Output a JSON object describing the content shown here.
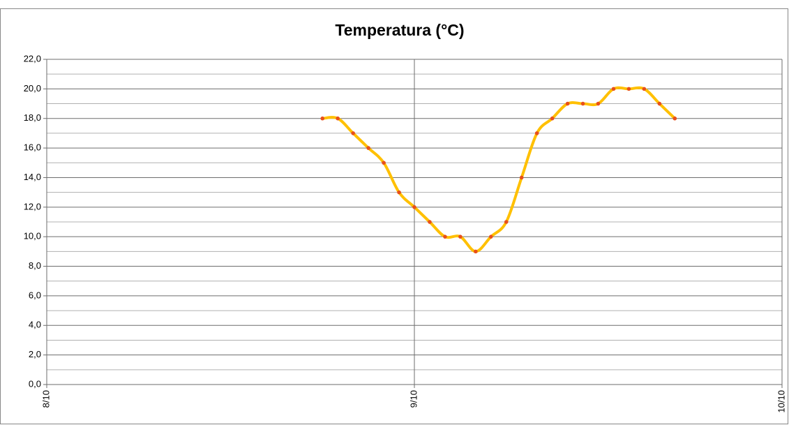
{
  "chart_data": {
    "type": "line",
    "title": "Temperatura (°C)",
    "x": [
      18,
      19,
      20,
      21,
      22,
      23,
      24,
      25,
      26,
      27,
      28,
      29,
      30,
      31,
      32,
      33,
      34,
      35,
      36,
      37,
      38,
      39,
      40,
      41
    ],
    "series": [
      {
        "name": "Temperatura",
        "color": "#ffc000",
        "marker_color": "#e8501a",
        "values": [
          18,
          18,
          17,
          16,
          15,
          13,
          12,
          11,
          10,
          10,
          9,
          10,
          11,
          14,
          17,
          18,
          19,
          19,
          19,
          20,
          20,
          20,
          19,
          18
        ]
      }
    ],
    "xlim": [
      0,
      48
    ],
    "xticks": [
      {
        "value": 0,
        "label": "8/10"
      },
      {
        "value": 24,
        "label": "9/10"
      },
      {
        "value": 48,
        "label": "10/10"
      }
    ],
    "ylim": [
      0,
      22
    ],
    "yticks": [
      {
        "value": 0,
        "label": "0,0"
      },
      {
        "value": 2,
        "label": "2,0"
      },
      {
        "value": 4,
        "label": "4,0"
      },
      {
        "value": 6,
        "label": "6,0"
      },
      {
        "value": 8,
        "label": "8,0"
      },
      {
        "value": 10,
        "label": "10,0"
      },
      {
        "value": 12,
        "label": "12,0"
      },
      {
        "value": 14,
        "label": "14,0"
      },
      {
        "value": 16,
        "label": "16,0"
      },
      {
        "value": 18,
        "label": "18,0"
      },
      {
        "value": 20,
        "label": "20,0"
      },
      {
        "value": 22,
        "label": "22,0"
      }
    ],
    "yminorticks": [
      1,
      3,
      5,
      7,
      9,
      11,
      13,
      15,
      17,
      19,
      21
    ],
    "grid": true,
    "smooth": true
  }
}
